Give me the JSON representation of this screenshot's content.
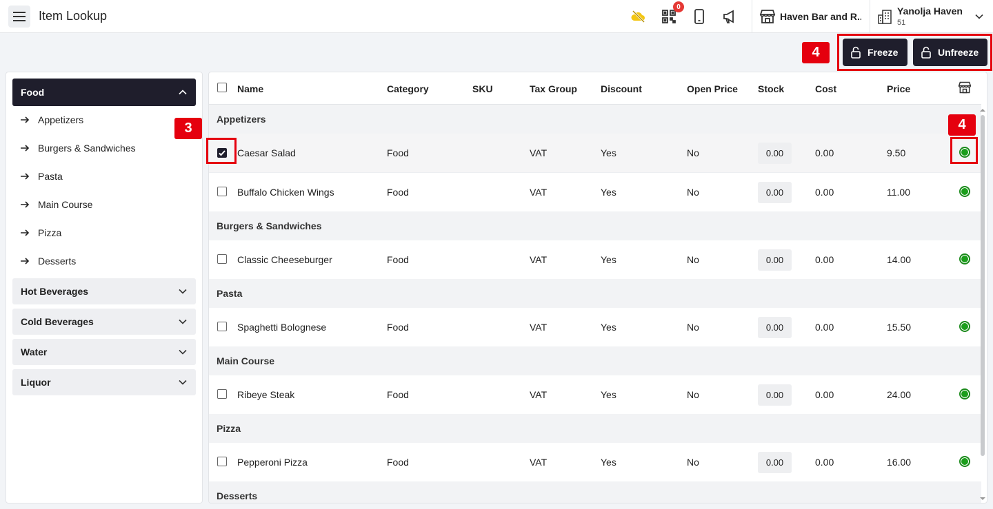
{
  "header": {
    "title": "Item Lookup",
    "qr_badge": "0",
    "store_name": "Haven Bar and R...",
    "org_name": "Yanolja Haven",
    "org_id": "51",
    "icons": [
      "menu-icon",
      "cloud-off-icon",
      "qr-code-icon",
      "mobile-icon",
      "megaphone-icon",
      "store-icon",
      "building-icon",
      "chevron-down-icon"
    ]
  },
  "actions": {
    "freeze_label": "Freeze",
    "unfreeze_label": "Unfreeze"
  },
  "annotations": {
    "tag_actions": "4",
    "tag_checkbox": "3",
    "tag_status": "4"
  },
  "sidebar": {
    "open_category": "Food",
    "subcategories": [
      "Appetizers",
      "Burgers & Sandwiches",
      "Pasta",
      "Main Course",
      "Pizza",
      "Desserts"
    ],
    "collapsed_categories": [
      "Hot Beverages",
      "Cold Beverages",
      "Water",
      "Liquor"
    ]
  },
  "table": {
    "columns": [
      "Name",
      "Category",
      "SKU",
      "Tax Group",
      "Discount",
      "Open Price",
      "Stock",
      "Cost",
      "Price"
    ],
    "groups": [
      {
        "name": "Appetizers",
        "items": [
          {
            "name": "Caesar Salad",
            "category": "Food",
            "sku": "",
            "tax": "VAT",
            "discount": "Yes",
            "open_price": "No",
            "stock": "0.00",
            "cost": "0.00",
            "price": "9.50",
            "checked": true
          },
          {
            "name": "Buffalo Chicken Wings",
            "category": "Food",
            "sku": "",
            "tax": "VAT",
            "discount": "Yes",
            "open_price": "No",
            "stock": "0.00",
            "cost": "0.00",
            "price": "11.00",
            "checked": false
          }
        ]
      },
      {
        "name": "Burgers & Sandwiches",
        "items": [
          {
            "name": "Classic Cheeseburger",
            "category": "Food",
            "sku": "",
            "tax": "VAT",
            "discount": "Yes",
            "open_price": "No",
            "stock": "0.00",
            "cost": "0.00",
            "price": "14.00",
            "checked": false
          }
        ]
      },
      {
        "name": "Pasta",
        "items": [
          {
            "name": "Spaghetti Bolognese",
            "category": "Food",
            "sku": "",
            "tax": "VAT",
            "discount": "Yes",
            "open_price": "No",
            "stock": "0.00",
            "cost": "0.00",
            "price": "15.50",
            "checked": false
          }
        ]
      },
      {
        "name": "Main Course",
        "items": [
          {
            "name": "Ribeye Steak",
            "category": "Food",
            "sku": "",
            "tax": "VAT",
            "discount": "Yes",
            "open_price": "No",
            "stock": "0.00",
            "cost": "0.00",
            "price": "24.00",
            "checked": false
          }
        ]
      },
      {
        "name": "Pizza",
        "items": [
          {
            "name": "Pepperoni Pizza",
            "category": "Food",
            "sku": "",
            "tax": "VAT",
            "discount": "Yes",
            "open_price": "No",
            "stock": "0.00",
            "cost": "0.00",
            "price": "16.00",
            "checked": false
          }
        ]
      },
      {
        "name": "Desserts",
        "items": []
      }
    ]
  },
  "colors": {
    "primary": "#1f1e2c",
    "highlight": "#e5000e",
    "status_active": "#1b9e1b",
    "badge": "#e53935"
  }
}
